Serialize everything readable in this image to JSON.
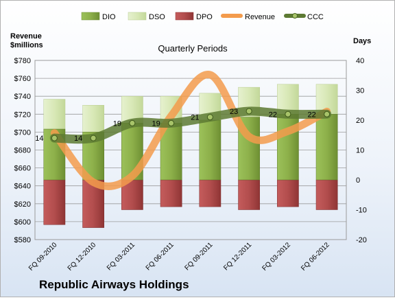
{
  "chart_data": {
    "type": "bar",
    "title": "Quarterly Periods",
    "company": "Republic Airways Holdings",
    "left_axis_label_line1": "Revenue",
    "left_axis_label_line2": "$millions",
    "right_axis_label": "Days",
    "categories": [
      "FQ 09-2010",
      "FQ 12-2010",
      "FQ 03-2011",
      "FQ 06-2011",
      "FQ 09-2011",
      "FQ 12-2011",
      "FQ 03-2012",
      "FQ 06-2012"
    ],
    "left_ylim": [
      580,
      780
    ],
    "left_ticks": [
      580,
      600,
      620,
      640,
      660,
      680,
      700,
      720,
      740,
      760,
      780
    ],
    "right_ylim": [
      -20,
      40
    ],
    "right_ticks": [
      -20,
      -10,
      0,
      10,
      20,
      30,
      40
    ],
    "grid": true,
    "legend_position": "top",
    "series": [
      {
        "name": "DIO",
        "kind": "stacked-bar",
        "axis": "right",
        "color": "#8db04a",
        "values": [
          17,
          16,
          19,
          19,
          20,
          21,
          22,
          22
        ]
      },
      {
        "name": "DSO",
        "kind": "stacked-bar",
        "axis": "right",
        "color": "#d8e8b6",
        "values": [
          10,
          9,
          9,
          9,
          9,
          10,
          10,
          10
        ]
      },
      {
        "name": "DPO",
        "kind": "negative-bar",
        "axis": "right",
        "color": "#b24d4d",
        "values": [
          -15,
          -16,
          -10,
          -9,
          -9,
          -10,
          -9,
          -10
        ]
      },
      {
        "name": "Revenue",
        "kind": "line",
        "axis": "left",
        "color": "#f39b4c",
        "values": [
          699,
          644,
          651,
          718,
          764,
          695,
          701,
          723
        ]
      },
      {
        "name": "CCC",
        "kind": "line",
        "axis": "right",
        "color": "#5d7a33",
        "values": [
          14,
          14,
          19,
          19,
          21,
          23,
          22,
          22
        ]
      }
    ],
    "ccc_labels": [
      "14",
      "14",
      "19",
      "19",
      "21",
      "23",
      "22",
      "22"
    ]
  }
}
